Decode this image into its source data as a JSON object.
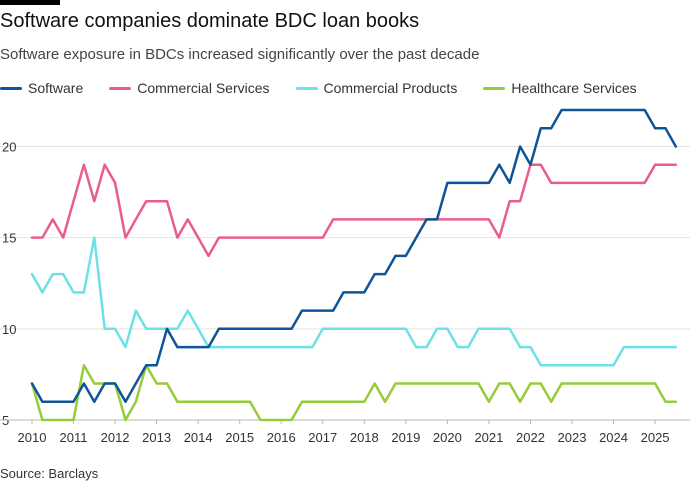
{
  "header": {
    "title": "Software companies dominate BDC loan books",
    "subtitle": "Software exposure in BDCs increased significantly over the past decade"
  },
  "source": "Source: Barclays",
  "chart_data": {
    "type": "line",
    "title": "Software companies dominate BDC loan books",
    "subtitle": "Software exposure in BDCs increased significantly over the past decade",
    "xlabel": "",
    "ylabel": "",
    "xlim": [
      2010,
      2025.6
    ],
    "ylim": [
      5,
      22
    ],
    "grid": true,
    "legend_position": "top",
    "x_ticks": [
      2010,
      2011,
      2012,
      2013,
      2014,
      2015,
      2016,
      2017,
      2018,
      2019,
      2020,
      2021,
      2022,
      2023,
      2024,
      2025
    ],
    "y_ticks": [
      5,
      10,
      15,
      20
    ],
    "x": [
      2010.0,
      2010.25,
      2010.5,
      2010.75,
      2011.0,
      2011.25,
      2011.5,
      2011.75,
      2012.0,
      2012.25,
      2012.5,
      2012.75,
      2013.0,
      2013.25,
      2013.5,
      2013.75,
      2014.0,
      2014.25,
      2014.5,
      2014.75,
      2015.0,
      2015.25,
      2015.5,
      2015.75,
      2016.0,
      2016.25,
      2016.5,
      2016.75,
      2017.0,
      2017.25,
      2017.5,
      2017.75,
      2018.0,
      2018.25,
      2018.5,
      2018.75,
      2019.0,
      2019.25,
      2019.5,
      2019.75,
      2020.0,
      2020.25,
      2020.5,
      2020.75,
      2021.0,
      2021.25,
      2021.5,
      2021.75,
      2022.0,
      2022.25,
      2022.5,
      2022.75,
      2023.0,
      2023.25,
      2023.5,
      2023.75,
      2024.0,
      2024.25,
      2024.5,
      2024.75,
      2025.0,
      2025.25,
      2025.5
    ],
    "series": [
      {
        "name": "Software",
        "color": "#0f5499",
        "values": [
          7,
          6,
          6,
          6,
          6,
          7,
          6,
          7,
          7,
          6,
          7,
          8,
          8,
          10,
          9,
          9,
          9,
          9,
          10,
          10,
          10,
          10,
          10,
          10,
          10,
          10,
          11,
          11,
          11,
          11,
          12,
          12,
          12,
          13,
          13,
          14,
          14,
          15,
          16,
          16,
          18,
          18,
          18,
          18,
          18,
          19,
          18,
          20,
          19,
          21,
          21,
          22,
          22,
          22,
          22,
          22,
          22,
          22,
          22,
          22,
          21,
          21,
          20
        ]
      },
      {
        "name": "Commercial Services",
        "color": "#e95d8c",
        "values": [
          15,
          15,
          16,
          15,
          17,
          19,
          17,
          19,
          18,
          15,
          16,
          17,
          17,
          17,
          15,
          16,
          15,
          14,
          15,
          15,
          15,
          15,
          15,
          15,
          15,
          15,
          15,
          15,
          15,
          16,
          16,
          16,
          16,
          16,
          16,
          16,
          16,
          16,
          16,
          16,
          16,
          16,
          16,
          16,
          16,
          15,
          17,
          17,
          19,
          19,
          18,
          18,
          18,
          18,
          18,
          18,
          18,
          18,
          18,
          18,
          19,
          19,
          19
        ]
      },
      {
        "name": "Commercial Products",
        "color": "#6ee0e8",
        "values": [
          13,
          12,
          13,
          13,
          12,
          12,
          15,
          10,
          10,
          9,
          11,
          10,
          10,
          10,
          10,
          11,
          10,
          9,
          9,
          9,
          9,
          9,
          9,
          9,
          9,
          9,
          9,
          9,
          10,
          10,
          10,
          10,
          10,
          10,
          10,
          10,
          10,
          9,
          9,
          10,
          10,
          9,
          9,
          10,
          10,
          10,
          10,
          9,
          9,
          8,
          8,
          8,
          8,
          8,
          8,
          8,
          8,
          9,
          9,
          9,
          9,
          9,
          9
        ]
      },
      {
        "name": "Healthcare Services",
        "color": "#96cc39",
        "values": [
          7,
          5,
          5,
          5,
          5,
          8,
          7,
          7,
          7,
          5,
          6,
          8,
          7,
          7,
          6,
          6,
          6,
          6,
          6,
          6,
          6,
          6,
          5,
          5,
          5,
          5,
          6,
          6,
          6,
          6,
          6,
          6,
          6,
          7,
          6,
          7,
          7,
          7,
          7,
          7,
          7,
          7,
          7,
          7,
          6,
          7,
          7,
          6,
          7,
          7,
          6,
          7,
          7,
          7,
          7,
          7,
          7,
          7,
          7,
          7,
          7,
          6,
          6
        ]
      }
    ]
  }
}
